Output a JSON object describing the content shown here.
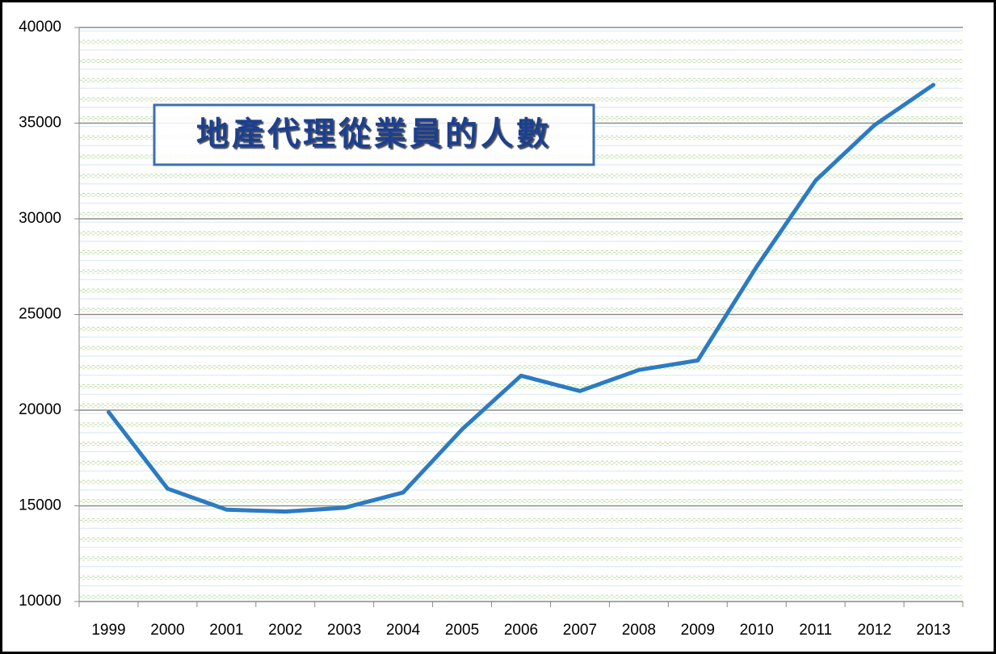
{
  "chart_data": {
    "type": "line",
    "title": "地產代理從業員的人數",
    "categories": [
      "1999",
      "2000",
      "2001",
      "2002",
      "2003",
      "2004",
      "2005",
      "2006",
      "2007",
      "2008",
      "2009",
      "2010",
      "2011",
      "2012",
      "2013"
    ],
    "values": [
      19900,
      15900,
      14800,
      14700,
      14900,
      15700,
      19000,
      21800,
      21000,
      22100,
      22600,
      27500,
      32000,
      34900,
      37000
    ],
    "color": "#2b7bc2",
    "ylim": [
      10000,
      40000
    ],
    "yticks": [
      10000,
      15000,
      20000,
      25000,
      30000,
      35000,
      40000
    ],
    "grid": true
  }
}
